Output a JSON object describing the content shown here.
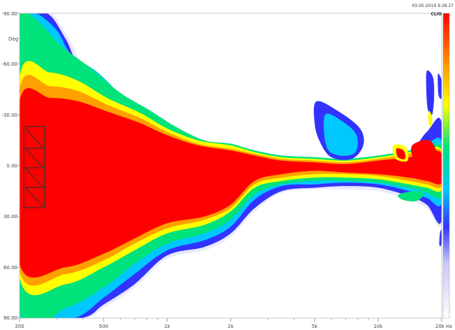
{
  "header": {
    "timestamp": "03-05-2019 9.28.27",
    "brand": "CLIO"
  },
  "chart_data": {
    "type": "heatmap",
    "title": "",
    "xlabel": "",
    "ylabel": "Deg",
    "x_scale": "log",
    "xlim": [
      200,
      20000
    ],
    "ylim": [
      -90,
      90
    ],
    "x_ticks": [
      {
        "value": 200,
        "label": "200"
      },
      {
        "value": 500,
        "label": "500"
      },
      {
        "value": 1000,
        "label": "1k"
      },
      {
        "value": 2000,
        "label": "2k"
      },
      {
        "value": 5000,
        "label": "5k"
      },
      {
        "value": 10000,
        "label": "10k"
      },
      {
        "value": 20000,
        "label": "20k Hz"
      }
    ],
    "x_minor_ticks": [
      300,
      400,
      600,
      700,
      800,
      900,
      3000,
      4000,
      6000,
      7000,
      8000,
      9000
    ],
    "y_ticks": [
      {
        "value": -90,
        "label": "-90.00"
      },
      {
        "value": -60,
        "label": "-60.00"
      },
      {
        "value": -30,
        "label": "-30.00"
      },
      {
        "value": 0,
        "label": "0.00"
      },
      {
        "value": 30,
        "label": "30.00"
      },
      {
        "value": 60,
        "label": "60.00"
      },
      {
        "value": 90,
        "label": "90.00"
      }
    ],
    "colorscale": [
      "#ffffff",
      "#e9e9ff",
      "#c8c8fb",
      "#3333ff",
      "#00c8ff",
      "#00e27a",
      "#ffff00",
      "#ffa000",
      "#ff0000"
    ],
    "contours": [
      {
        "level": 1,
        "color": "#e9e9ff",
        "points": [
          [
            200,
            -90
          ],
          [
            280,
            -90
          ],
          [
            350,
            -73
          ],
          [
            400,
            -58
          ],
          [
            520,
            -48
          ],
          [
            700,
            -33
          ],
          [
            900,
            -24
          ],
          [
            1200,
            -16
          ],
          [
            1600,
            -10
          ],
          [
            2000,
            -10
          ],
          [
            2600,
            -7
          ],
          [
            3500,
            -4
          ],
          [
            5000,
            -3
          ],
          [
            7000,
            -3
          ],
          [
            10000,
            -4
          ],
          [
            14000,
            -7
          ],
          [
            17000,
            -18
          ],
          [
            20000,
            -24
          ],
          [
            20000,
            34
          ],
          [
            17000,
            25
          ],
          [
            14000,
            20
          ],
          [
            10000,
            15
          ],
          [
            7000,
            14
          ],
          [
            5000,
            14
          ],
          [
            3500,
            16
          ],
          [
            2600,
            27
          ],
          [
            2000,
            42
          ],
          [
            1500,
            50
          ],
          [
            1000,
            55
          ],
          [
            700,
            72
          ],
          [
            500,
            84
          ],
          [
            400,
            90
          ],
          [
            200,
            90
          ]
        ]
      },
      {
        "level": 2,
        "color": "#3333ff",
        "points": [
          [
            200,
            -90
          ],
          [
            270,
            -90
          ],
          [
            330,
            -75
          ],
          [
            380,
            -60
          ],
          [
            500,
            -50
          ],
          [
            680,
            -35
          ],
          [
            880,
            -26
          ],
          [
            1200,
            -17
          ],
          [
            1600,
            -11
          ],
          [
            2000,
            -11
          ],
          [
            2600,
            -8
          ],
          [
            3500,
            -5
          ],
          [
            5000,
            -4
          ],
          [
            7000,
            -4
          ],
          [
            10000,
            -5
          ],
          [
            14000,
            -8
          ],
          [
            17000,
            -20
          ],
          [
            20000,
            -25
          ],
          [
            20000,
            32
          ],
          [
            17000,
            23
          ],
          [
            14000,
            18
          ],
          [
            10000,
            13
          ],
          [
            7000,
            12
          ],
          [
            5000,
            13
          ],
          [
            3500,
            15
          ],
          [
            2600,
            25
          ],
          [
            2000,
            40
          ],
          [
            1500,
            48
          ],
          [
            1000,
            53
          ],
          [
            700,
            70
          ],
          [
            500,
            82
          ],
          [
            390,
            90
          ],
          [
            200,
            90
          ]
        ]
      },
      {
        "level": 3,
        "color": "#00c8ff",
        "points": [
          [
            200,
            -90
          ],
          [
            240,
            -90
          ],
          [
            300,
            -80
          ],
          [
            350,
            -66
          ],
          [
            470,
            -55
          ],
          [
            640,
            -39
          ],
          [
            850,
            -30
          ],
          [
            1150,
            -20
          ],
          [
            1600,
            -13
          ],
          [
            2000,
            -12
          ],
          [
            2600,
            -9
          ],
          [
            3500,
            -6
          ],
          [
            5000,
            -5
          ],
          [
            7000,
            -4
          ],
          [
            10000,
            -6
          ],
          [
            14000,
            -9
          ],
          [
            17000,
            -13
          ],
          [
            20000,
            -14
          ],
          [
            20000,
            22
          ],
          [
            17000,
            19
          ],
          [
            14000,
            15
          ],
          [
            10000,
            11
          ],
          [
            7000,
            10
          ],
          [
            5000,
            11
          ],
          [
            3500,
            12
          ],
          [
            2600,
            20
          ],
          [
            2000,
            36
          ],
          [
            1500,
            44
          ],
          [
            1000,
            50
          ],
          [
            700,
            64
          ],
          [
            500,
            78
          ],
          [
            360,
            90
          ],
          [
            200,
            90
          ]
        ]
      },
      {
        "level": 4,
        "color": "#00e27a",
        "points": [
          [
            200,
            -90
          ],
          [
            220,
            -90
          ],
          [
            260,
            -82
          ],
          [
            320,
            -70
          ],
          [
            430,
            -58
          ],
          [
            600,
            -43
          ],
          [
            820,
            -33
          ],
          [
            1100,
            -23
          ],
          [
            1500,
            -15
          ],
          [
            2000,
            -13
          ],
          [
            2600,
            -9
          ],
          [
            3500,
            -6
          ],
          [
            5000,
            -5
          ],
          [
            7000,
            -4
          ],
          [
            10000,
            -6
          ],
          [
            14000,
            -9
          ],
          [
            17000,
            -11
          ],
          [
            20000,
            -11
          ],
          [
            20000,
            18
          ],
          [
            17000,
            16
          ],
          [
            14000,
            13
          ],
          [
            10000,
            10
          ],
          [
            7000,
            9
          ],
          [
            5000,
            9
          ],
          [
            3500,
            11
          ],
          [
            2600,
            17
          ],
          [
            2000,
            32
          ],
          [
            1500,
            40
          ],
          [
            1000,
            46
          ],
          [
            700,
            58
          ],
          [
            500,
            72
          ],
          [
            330,
            84
          ],
          [
            200,
            86
          ]
        ]
      },
      {
        "level": 5,
        "color": "#ffff00",
        "points": [
          [
            200,
            -52
          ],
          [
            280,
            -55
          ],
          [
            380,
            -50
          ],
          [
            520,
            -40
          ],
          [
            750,
            -31
          ],
          [
            1000,
            -22
          ],
          [
            1400,
            -15
          ],
          [
            2000,
            -12
          ],
          [
            2600,
            -8
          ],
          [
            3500,
            -5
          ],
          [
            5000,
            -4
          ],
          [
            7000,
            -3
          ],
          [
            10000,
            -5
          ],
          [
            14000,
            -8
          ],
          [
            17000,
            -10
          ],
          [
            20000,
            -9
          ],
          [
            20000,
            14
          ],
          [
            17000,
            13
          ],
          [
            14000,
            11
          ],
          [
            10000,
            8
          ],
          [
            7000,
            7
          ],
          [
            5000,
            7
          ],
          [
            3500,
            9
          ],
          [
            2600,
            13
          ],
          [
            2000,
            27
          ],
          [
            1500,
            35
          ],
          [
            1000,
            40
          ],
          [
            700,
            50
          ],
          [
            500,
            60
          ],
          [
            330,
            70
          ],
          [
            200,
            66
          ]
        ]
      },
      {
        "level": 6,
        "color": "#ffa000",
        "points": [
          [
            200,
            -45
          ],
          [
            280,
            -47
          ],
          [
            380,
            -44
          ],
          [
            520,
            -36
          ],
          [
            750,
            -28
          ],
          [
            1000,
            -20
          ],
          [
            1400,
            -13
          ],
          [
            2000,
            -10
          ],
          [
            2600,
            -7
          ],
          [
            3500,
            -4
          ],
          [
            5000,
            -3
          ],
          [
            7000,
            -2
          ],
          [
            10000,
            -4
          ],
          [
            14000,
            -7
          ],
          [
            17000,
            -9
          ],
          [
            20000,
            -8
          ],
          [
            20000,
            12
          ],
          [
            17000,
            11
          ],
          [
            14000,
            9
          ],
          [
            10000,
            6
          ],
          [
            7000,
            5
          ],
          [
            5000,
            5
          ],
          [
            3500,
            7
          ],
          [
            2600,
            11
          ],
          [
            2000,
            25
          ],
          [
            1500,
            32
          ],
          [
            1000,
            37
          ],
          [
            700,
            46
          ],
          [
            500,
            56
          ],
          [
            330,
            64
          ],
          [
            200,
            62
          ]
        ]
      },
      {
        "level": 7,
        "color": "#ff0000",
        "points": [
          [
            200,
            -38
          ],
          [
            280,
            -40
          ],
          [
            380,
            -38
          ],
          [
            520,
            -32
          ],
          [
            750,
            -25
          ],
          [
            1000,
            -18
          ],
          [
            1400,
            -12
          ],
          [
            2000,
            -9
          ],
          [
            2600,
            -6
          ],
          [
            3500,
            -3
          ],
          [
            5000,
            -2
          ],
          [
            7000,
            -1
          ],
          [
            10000,
            -3
          ],
          [
            14000,
            -5
          ],
          [
            17000,
            -8
          ],
          [
            20000,
            -7
          ],
          [
            20000,
            10
          ],
          [
            17000,
            9
          ],
          [
            14000,
            7
          ],
          [
            10000,
            5
          ],
          [
            7000,
            4
          ],
          [
            5000,
            3
          ],
          [
            3500,
            5
          ],
          [
            2600,
            9
          ],
          [
            2000,
            23
          ],
          [
            1500,
            30
          ],
          [
            1000,
            34
          ],
          [
            700,
            43
          ],
          [
            500,
            52
          ],
          [
            330,
            60
          ],
          [
            200,
            58
          ]
        ]
      }
    ],
    "islands": [
      {
        "color": "#3333ff",
        "points": [
          [
            5100,
            -38
          ],
          [
            6500,
            -32
          ],
          [
            8200,
            -22
          ],
          [
            8500,
            -12
          ],
          [
            7500,
            -4
          ],
          [
            6000,
            -5
          ],
          [
            5300,
            -14
          ],
          [
            5000,
            -25
          ]
        ]
      },
      {
        "color": "#00c8ff",
        "points": [
          [
            5600,
            -30
          ],
          [
            6800,
            -26
          ],
          [
            7900,
            -18
          ],
          [
            7800,
            -8
          ],
          [
            6600,
            -6
          ],
          [
            5700,
            -11
          ]
        ]
      },
      {
        "color": "#3333ff",
        "points": [
          [
            17000,
            -56
          ],
          [
            18200,
            -52
          ],
          [
            18400,
            -40
          ],
          [
            18000,
            -30
          ],
          [
            17200,
            -33
          ],
          [
            16900,
            -45
          ]
        ]
      },
      {
        "color": "#ffff00",
        "points": [
          [
            17300,
            -32
          ],
          [
            17900,
            -30
          ],
          [
            18000,
            -24
          ],
          [
            17400,
            -24
          ]
        ]
      },
      {
        "color": "#3333ff",
        "points": [
          [
            19200,
            -54
          ],
          [
            20000,
            -50
          ],
          [
            20000,
            -40
          ],
          [
            19300,
            -42
          ]
        ]
      },
      {
        "color": "#3333ff",
        "points": [
          [
            19600,
            40
          ],
          [
            20000,
            38
          ],
          [
            20000,
            46
          ],
          [
            19500,
            47
          ]
        ]
      },
      {
        "color": "#00e27a",
        "points": [
          [
            12500,
            17
          ],
          [
            15000,
            15
          ],
          [
            16500,
            17
          ],
          [
            15000,
            21
          ],
          [
            13000,
            20
          ]
        ]
      },
      {
        "color": "#ffff00",
        "points": [
          [
            11800,
            -12
          ],
          [
            13500,
            -11
          ],
          [
            13800,
            -3
          ],
          [
            12100,
            -4
          ]
        ]
      },
      {
        "color": "#ff0000",
        "points": [
          [
            12200,
            -10
          ],
          [
            13200,
            -9
          ],
          [
            13400,
            -4
          ],
          [
            12400,
            -5
          ]
        ]
      },
      {
        "color": "#ff0000",
        "points": [
          [
            14500,
            -12
          ],
          [
            17500,
            -15
          ],
          [
            19000,
            -6
          ],
          [
            17000,
            -2
          ],
          [
            14800,
            -4
          ]
        ]
      }
    ]
  }
}
